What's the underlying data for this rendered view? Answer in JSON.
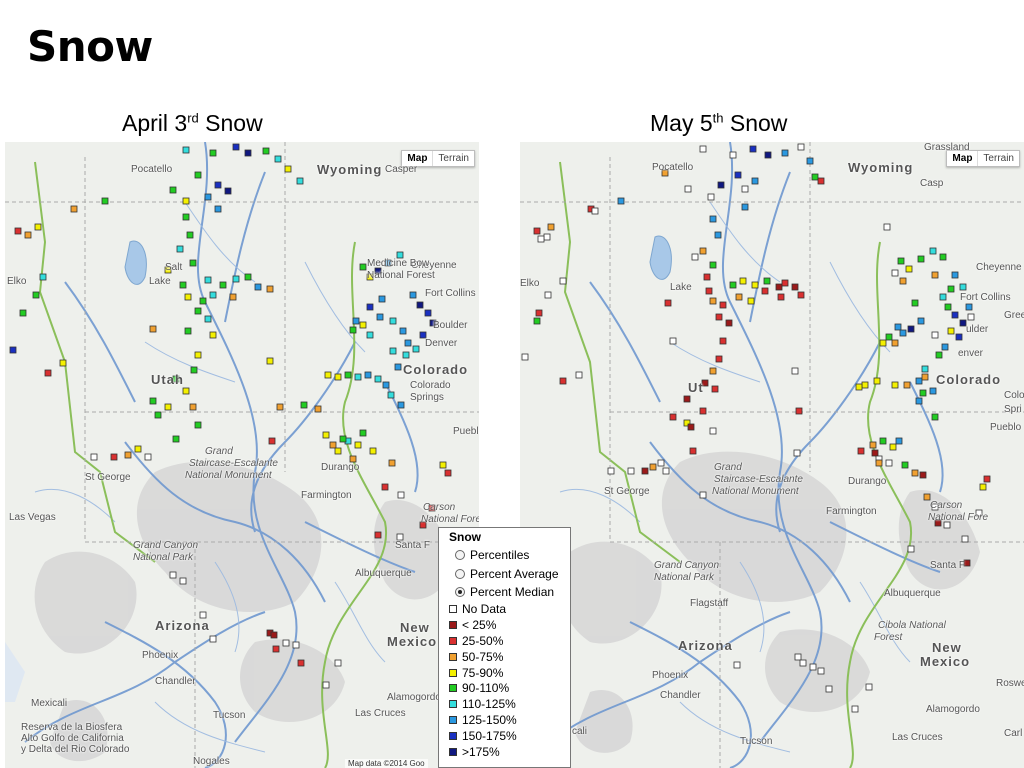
{
  "slide": {
    "title": "Snow"
  },
  "maps": [
    {
      "caption_main": "April 3",
      "caption_sup": "rd",
      "caption_tail": " Snow"
    },
    {
      "caption_main": "May 5",
      "caption_sup": "th",
      "caption_tail": " Snow"
    }
  ],
  "map_controls": {
    "map_label": "Map",
    "terrain_label": "Terrain"
  },
  "places_left": {
    "pocatello": "Pocatello",
    "wyoming": "Wyoming",
    "casper": "Casper",
    "cheyenne": "Cheyenne",
    "medicine_bow": "Medicine Bow",
    "national_forest": "National Forest",
    "fort_collins": "Fort Collins",
    "boulder": "Boulder",
    "denver": "Denver",
    "colorado": "Colorado",
    "colorado_springs_1": "Colorado",
    "colorado_springs_2": "Springs",
    "pueblo": "Pueblo",
    "elko": "Elko",
    "lake": "Lake",
    "salt": "Salt",
    "utah": "Utah",
    "grand_staircase_1": "Grand",
    "grand_staircase_2": "Staircase-Escalante",
    "grand_staircase_3": "National Monument",
    "st_george": "St George",
    "durango": "Durango",
    "farmington": "Farmington",
    "carson_1": "Carson",
    "carson_2": "National Fore",
    "santa_fe": "Santa F",
    "las_vegas": "Las Vegas",
    "grand_canyon_1": "Grand Canyon",
    "grand_canyon_2": "National Park",
    "albuquerque": "Albuquerque",
    "arizona": "Arizona",
    "new_mexico_1": "New",
    "new_mexico_2": "Mexico",
    "phoenix": "Phoenix",
    "chandler": "Chandler",
    "alamogordo": "Alamogordo",
    "las_cruces": "Las Cruces",
    "tucson": "Tucson",
    "mexicali": "Mexicali",
    "reserva_1": "Reserva de la Biosfera",
    "reserva_2": "Alto Golfo de California",
    "reserva_3": "y Delta del Rio Colorado",
    "nogales": "Nogales"
  },
  "places_right": {
    "grassland": "Grassland",
    "pocatello": "Pocatello",
    "wyoming": "Wyoming",
    "casper": "Casp",
    "cheyenne": "Cheyenne",
    "fort_collins": "Fort Collins",
    "boulder": "ulder",
    "greeley": "Gree",
    "denver": "enver",
    "colorado": "Colorado",
    "colorado_springs_1": "Colo",
    "colorado_springs_2": "Spri",
    "pueblo": "Pueblo",
    "elko": "Elko",
    "lake": "Lake",
    "utah": "Ut",
    "grand_staircase_1": "Grand",
    "grand_staircase_2": "Staircase-Escalante",
    "grand_staircase_3": "National Monument",
    "st_george": "St George",
    "durango": "Durango",
    "farmington": "Farmington",
    "carson_1": "Carson",
    "carson_2": "National Fore",
    "santa_fe": "Santa F",
    "grand_canyon_1": "Grand Canyon",
    "grand_canyon_2": "National Park",
    "flagstaff": "Flagstaff",
    "albuquerque": "Albuquerque",
    "cibola_1": "Cibola National",
    "cibola_2": "Forest",
    "arizona": "Arizona",
    "new_mexico_1": "New",
    "new_mexico_2": "Mexico",
    "phoenix": "Phoenix",
    "chandler": "Chandler",
    "alamogordo": "Alamogordo",
    "las_cruces": "Las Cruces",
    "roswell": "Roswel",
    "tucson": "Tucson",
    "mexicali": "cali",
    "carlsbad": "Carl"
  },
  "legend": {
    "title": "Snow",
    "options": [
      {
        "label": "Percentiles",
        "checked": false
      },
      {
        "label": "Percent Average",
        "checked": false
      },
      {
        "label": "Percent Median",
        "checked": true
      }
    ],
    "categories": [
      {
        "label": "No Data",
        "color": "#ffffff"
      },
      {
        "label": "< 25%",
        "color": "#9b1a1a"
      },
      {
        "label": "25-50%",
        "color": "#d93030"
      },
      {
        "label": "50-75%",
        "color": "#f0a030"
      },
      {
        "label": "75-90%",
        "color": "#f4f000"
      },
      {
        "label": "90-110%",
        "color": "#22cc22"
      },
      {
        "label": "110-125%",
        "color": "#33dddd"
      },
      {
        "label": "125-150%",
        "color": "#2a98e0"
      },
      {
        "label": "150-175%",
        "color": "#1a30c0"
      },
      {
        "label": ">175%",
        "color": "#101880"
      }
    ]
  },
  "attribution": "Map data ©2014 Goo"
}
